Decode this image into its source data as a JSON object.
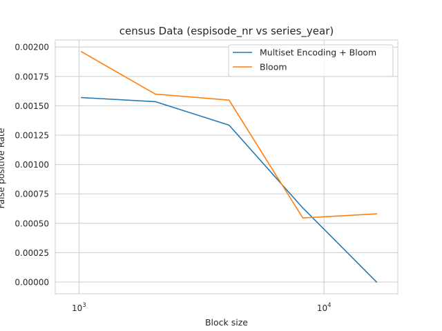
{
  "chart_data": {
    "type": "line",
    "title": "census Data (espisode_nr vs series_year)",
    "xlabel": "Block size",
    "ylabel": "False positive Rate",
    "xscale": "log",
    "xlim": [
      800,
      20000
    ],
    "ylim": [
      -0.0001,
      0.00206
    ],
    "x_ticks": [
      {
        "value": 1000,
        "base": "10",
        "exp": "3"
      },
      {
        "value": 10000,
        "base": "10",
        "exp": "4"
      }
    ],
    "y_ticks": [
      "0.00000",
      "0.00025",
      "0.00050",
      "0.00075",
      "0.00100",
      "0.00125",
      "0.00150",
      "0.00175",
      "0.00200"
    ],
    "grid": true,
    "legend_position": "top-right",
    "x": [
      1024,
      2048,
      4096,
      8192,
      16384
    ],
    "series": [
      {
        "name": "Multiset Encoding + Bloom",
        "color": "#1f77b4",
        "values": [
          0.00157,
          0.001535,
          0.001335,
          0.00063,
          0.0
        ]
      },
      {
        "name": "Bloom",
        "color": "#ff7f0e",
        "values": [
          0.00196,
          0.0016,
          0.001548,
          0.000545,
          0.00058
        ]
      }
    ]
  }
}
